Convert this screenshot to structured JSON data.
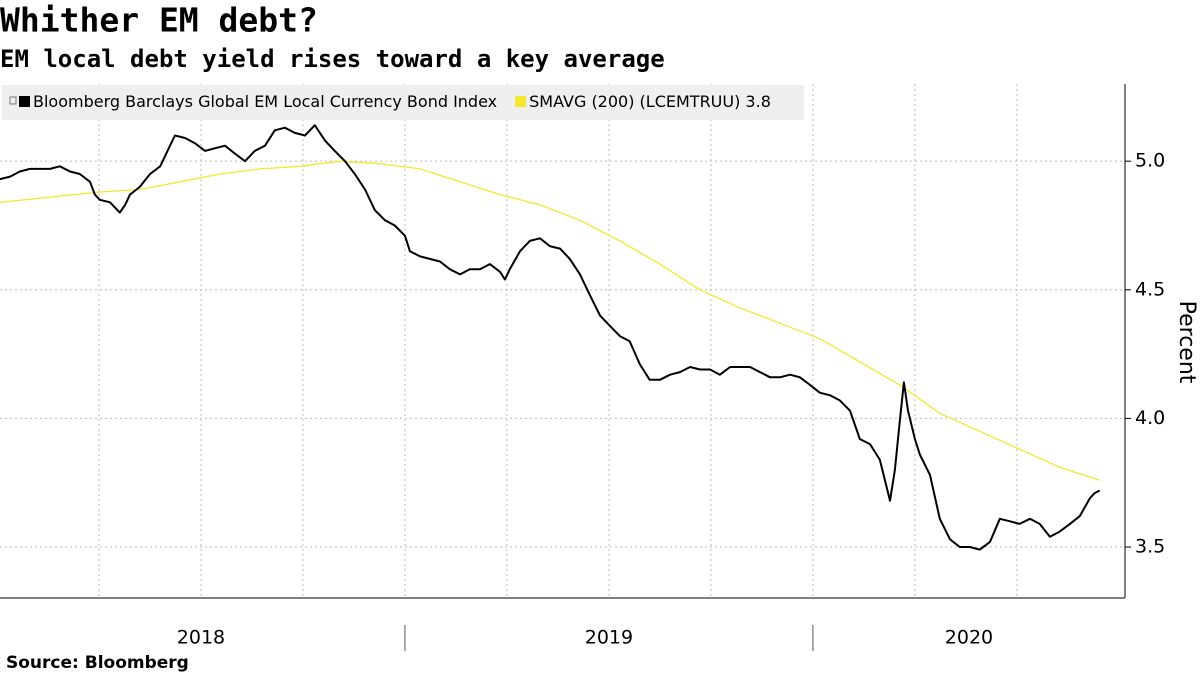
{
  "chart_data": {
    "type": "line",
    "title": "Whither EM debt?",
    "subtitle": "EM local debt yield rises toward a key average",
    "source": "Source: Bloomberg",
    "ylabel": "Percent",
    "ylim": [
      3.3,
      5.3
    ],
    "yticks": [
      {
        "value": 3.5,
        "label": "3.5"
      },
      {
        "value": 4.0,
        "label": "4.0"
      },
      {
        "value": 4.5,
        "label": "4.5"
      },
      {
        "value": 5.0,
        "label": "5.0"
      }
    ],
    "xlim": [
      2018.0,
      2020.765
    ],
    "xticks": [
      2018,
      2019,
      2020
    ],
    "xgrid": [
      2018.25,
      2018.5,
      2018.75,
      2019,
      2019.25,
      2019.5,
      2019.75,
      2020,
      2020.25,
      2020.5
    ],
    "grid": true,
    "legend": "top-left",
    "series": [
      {
        "name": "Bloomberg Barclays Global EM Local Currency Bond Index",
        "color": "#000000",
        "x": [
          2018.007,
          2018.032,
          2018.056,
          2018.081,
          2018.105,
          2018.13,
          2018.154,
          2018.179,
          2018.203,
          2018.228,
          2018.24,
          2018.252,
          2018.277,
          2018.301,
          2018.314,
          2018.326,
          2018.35,
          2018.375,
          2018.4,
          2018.424,
          2018.436,
          2018.461,
          2018.485,
          2018.51,
          2018.534,
          2018.559,
          2018.583,
          2018.608,
          2018.632,
          2018.657,
          2018.681,
          2018.706,
          2018.73,
          2018.755,
          2018.779,
          2018.804,
          2018.828,
          2018.853,
          2018.877,
          2018.902,
          2018.926,
          2018.951,
          2018.975,
          2019.0,
          2019.012,
          2019.037,
          2019.061,
          2019.086,
          2019.11,
          2019.135,
          2019.159,
          2019.184,
          2019.208,
          2019.233,
          2019.245,
          2019.257,
          2019.282,
          2019.306,
          2019.331,
          2019.355,
          2019.38,
          2019.404,
          2019.429,
          2019.453,
          2019.478,
          2019.502,
          2019.527,
          2019.551,
          2019.576,
          2019.6,
          2019.625,
          2019.65,
          2019.674,
          2019.699,
          2019.723,
          2019.748,
          2019.772,
          2019.797,
          2019.821,
          2019.846,
          2019.87,
          2019.895,
          2019.919,
          2019.944,
          2019.968,
          2019.993,
          2020.017,
          2020.042,
          2020.066,
          2020.091,
          2020.115,
          2020.14,
          2020.164,
          2020.189,
          2020.201,
          2020.213,
          2020.223,
          2020.233,
          2020.25,
          2020.262,
          2020.287,
          2020.311,
          2020.336,
          2020.36,
          2020.385,
          2020.409,
          2020.434,
          2020.458,
          2020.483,
          2020.507,
          2020.532,
          2020.556,
          2020.581,
          2020.605,
          2020.63,
          2020.654,
          2020.679,
          2020.691,
          2020.703
        ],
        "values": [
          4.93,
          4.94,
          4.96,
          4.97,
          4.97,
          4.97,
          4.98,
          4.96,
          4.95,
          4.92,
          4.87,
          4.85,
          4.84,
          4.8,
          4.83,
          4.87,
          4.9,
          4.95,
          4.98,
          5.06,
          5.1,
          5.09,
          5.07,
          5.04,
          5.05,
          5.06,
          5.03,
          5.0,
          5.04,
          5.06,
          5.12,
          5.13,
          5.11,
          5.1,
          5.14,
          5.08,
          5.04,
          5.0,
          4.95,
          4.89,
          4.81,
          4.77,
          4.75,
          4.71,
          4.65,
          4.63,
          4.62,
          4.61,
          4.58,
          4.56,
          4.58,
          4.58,
          4.6,
          4.57,
          4.54,
          4.58,
          4.65,
          4.69,
          4.7,
          4.67,
          4.66,
          4.62,
          4.56,
          4.48,
          4.4,
          4.36,
          4.32,
          4.3,
          4.21,
          4.15,
          4.15,
          4.17,
          4.18,
          4.2,
          4.19,
          4.19,
          4.17,
          4.2,
          4.2,
          4.2,
          4.18,
          4.16,
          4.16,
          4.17,
          4.16,
          4.13,
          4.1,
          4.09,
          4.07,
          4.03,
          3.92,
          3.9,
          3.84,
          3.68,
          3.8,
          3.99,
          4.14,
          4.03,
          3.92,
          3.86,
          3.78,
          3.61,
          3.53,
          3.5,
          3.5,
          3.49,
          3.52,
          3.61,
          3.6,
          3.59,
          3.61,
          3.59,
          3.54,
          3.56,
          3.59,
          3.62,
          3.69,
          3.71,
          3.72
        ]
      },
      {
        "name": "SMAVG (200) (LCEMTRUU) 3.8",
        "color": "#f5e630",
        "x": [
          2018.007,
          2018.13,
          2018.252,
          2018.35,
          2018.449,
          2018.547,
          2018.645,
          2018.743,
          2018.841,
          2018.939,
          2019.037,
          2019.135,
          2019.233,
          2019.331,
          2019.429,
          2019.527,
          2019.625,
          2019.723,
          2019.821,
          2019.919,
          2020.017,
          2020.115,
          2020.213,
          2020.311,
          2020.409,
          2020.507,
          2020.605,
          2020.703
        ],
        "values": [
          4.84,
          4.86,
          4.88,
          4.89,
          4.92,
          4.95,
          4.97,
          4.98,
          5.0,
          4.99,
          4.97,
          4.92,
          4.87,
          4.83,
          4.77,
          4.69,
          4.6,
          4.5,
          4.43,
          4.37,
          4.31,
          4.22,
          4.13,
          4.02,
          3.95,
          3.88,
          3.81,
          3.76
        ]
      }
    ]
  }
}
